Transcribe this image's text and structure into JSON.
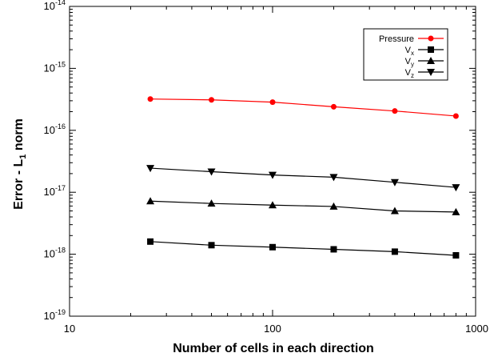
{
  "chart_data": {
    "type": "line",
    "title": "",
    "xlabel": "Number of cells in each direction",
    "ylabel": {
      "main": "Error - L",
      "sub": "1",
      "tail": " norm"
    },
    "x_scale": "log",
    "y_scale": "log",
    "xlim": [
      10,
      1000
    ],
    "ylim": [
      1e-19,
      1e-14
    ],
    "x_ticks": [
      {
        "value": 10,
        "label": "10"
      },
      {
        "value": 100,
        "label": "100"
      },
      {
        "value": 1000,
        "label": "1000"
      }
    ],
    "y_ticks": [
      {
        "value": 1e-19,
        "mantissa": "10",
        "exp": "-19"
      },
      {
        "value": 1e-18,
        "mantissa": "10",
        "exp": "-18"
      },
      {
        "value": 1e-17,
        "mantissa": "10",
        "exp": "-17"
      },
      {
        "value": 1e-16,
        "mantissa": "10",
        "exp": "-16"
      },
      {
        "value": 1e-15,
        "mantissa": "10",
        "exp": "-15"
      },
      {
        "value": 1e-14,
        "mantissa": "10",
        "exp": "-14"
      }
    ],
    "grid": false,
    "legend_position": "top-right",
    "x": [
      25,
      50,
      100,
      200,
      400,
      800
    ],
    "series": [
      {
        "name": "Pressure",
        "label_main": "Pressure",
        "label_sub": "",
        "marker": "circle",
        "color": "#ff0000",
        "values": [
          3.2e-16,
          3.1e-16,
          2.85e-16,
          2.4e-16,
          2.05e-16,
          1.7e-16
        ]
      },
      {
        "name": "Vx",
        "label_main": "V",
        "label_sub": "x",
        "marker": "square",
        "color": "#000000",
        "values": [
          1.6e-18,
          1.4e-18,
          1.3e-18,
          1.2e-18,
          1.1e-18,
          9.6e-19
        ]
      },
      {
        "name": "Vy",
        "label_main": "V",
        "label_sub": "y",
        "marker": "triangle-up",
        "color": "#000000",
        "values": [
          7.2e-18,
          6.6e-18,
          6.2e-18,
          5.9e-18,
          5e-18,
          4.8e-18
        ]
      },
      {
        "name": "Vz",
        "label_main": "V",
        "label_sub": "z",
        "marker": "triangle-down",
        "color": "#000000",
        "values": [
          2.45e-17,
          2.15e-17,
          1.9e-17,
          1.75e-17,
          1.45e-17,
          1.2e-17
        ]
      }
    ]
  }
}
